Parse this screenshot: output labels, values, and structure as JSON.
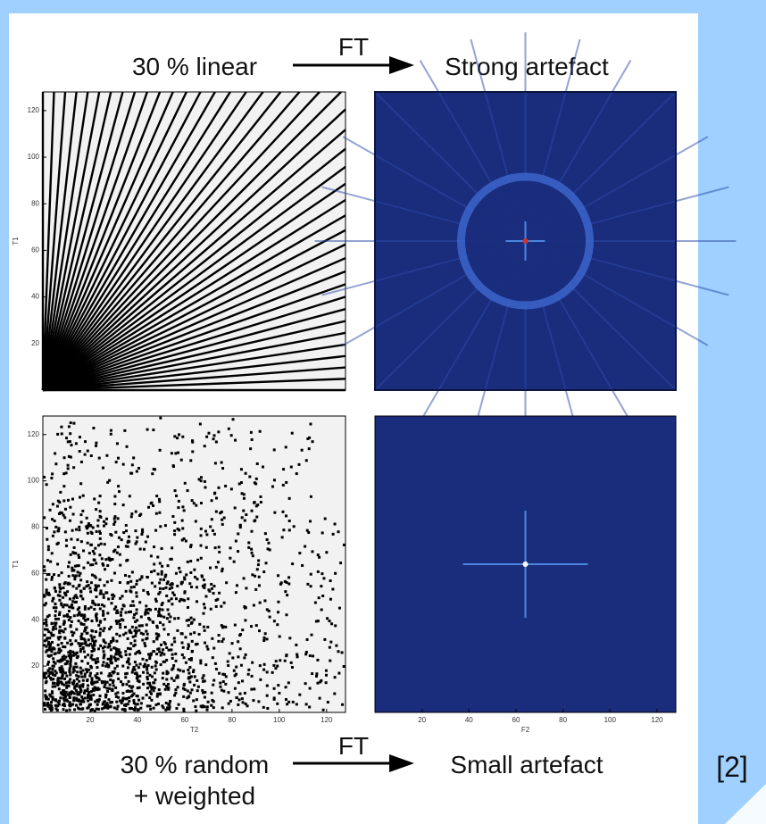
{
  "header": {
    "left": "30 % linear",
    "arrow": "FT",
    "right": "Strong artefact"
  },
  "footer": {
    "left": [
      "30 % random",
      "+ weighted"
    ],
    "arrow": "FT",
    "right": "Small artefact"
  },
  "panels": [
    {
      "y_label": "T1",
      "ylim": [
        0,
        128
      ],
      "yticks": [
        20,
        40,
        60,
        80,
        100,
        120
      ]
    },
    {},
    {
      "x_label": "T2",
      "y_label": "T1",
      "xlim": [
        0,
        128
      ],
      "ylim": [
        0,
        128
      ],
      "xticks": [
        20,
        40,
        60,
        80,
        100,
        120
      ],
      "yticks": [
        20,
        40,
        60,
        80,
        100,
        120
      ]
    },
    {
      "x_label": "F2",
      "xlim": [
        0,
        128
      ],
      "xticks": [
        20,
        40,
        60,
        80,
        100,
        120
      ]
    }
  ],
  "citation": "[2]"
}
